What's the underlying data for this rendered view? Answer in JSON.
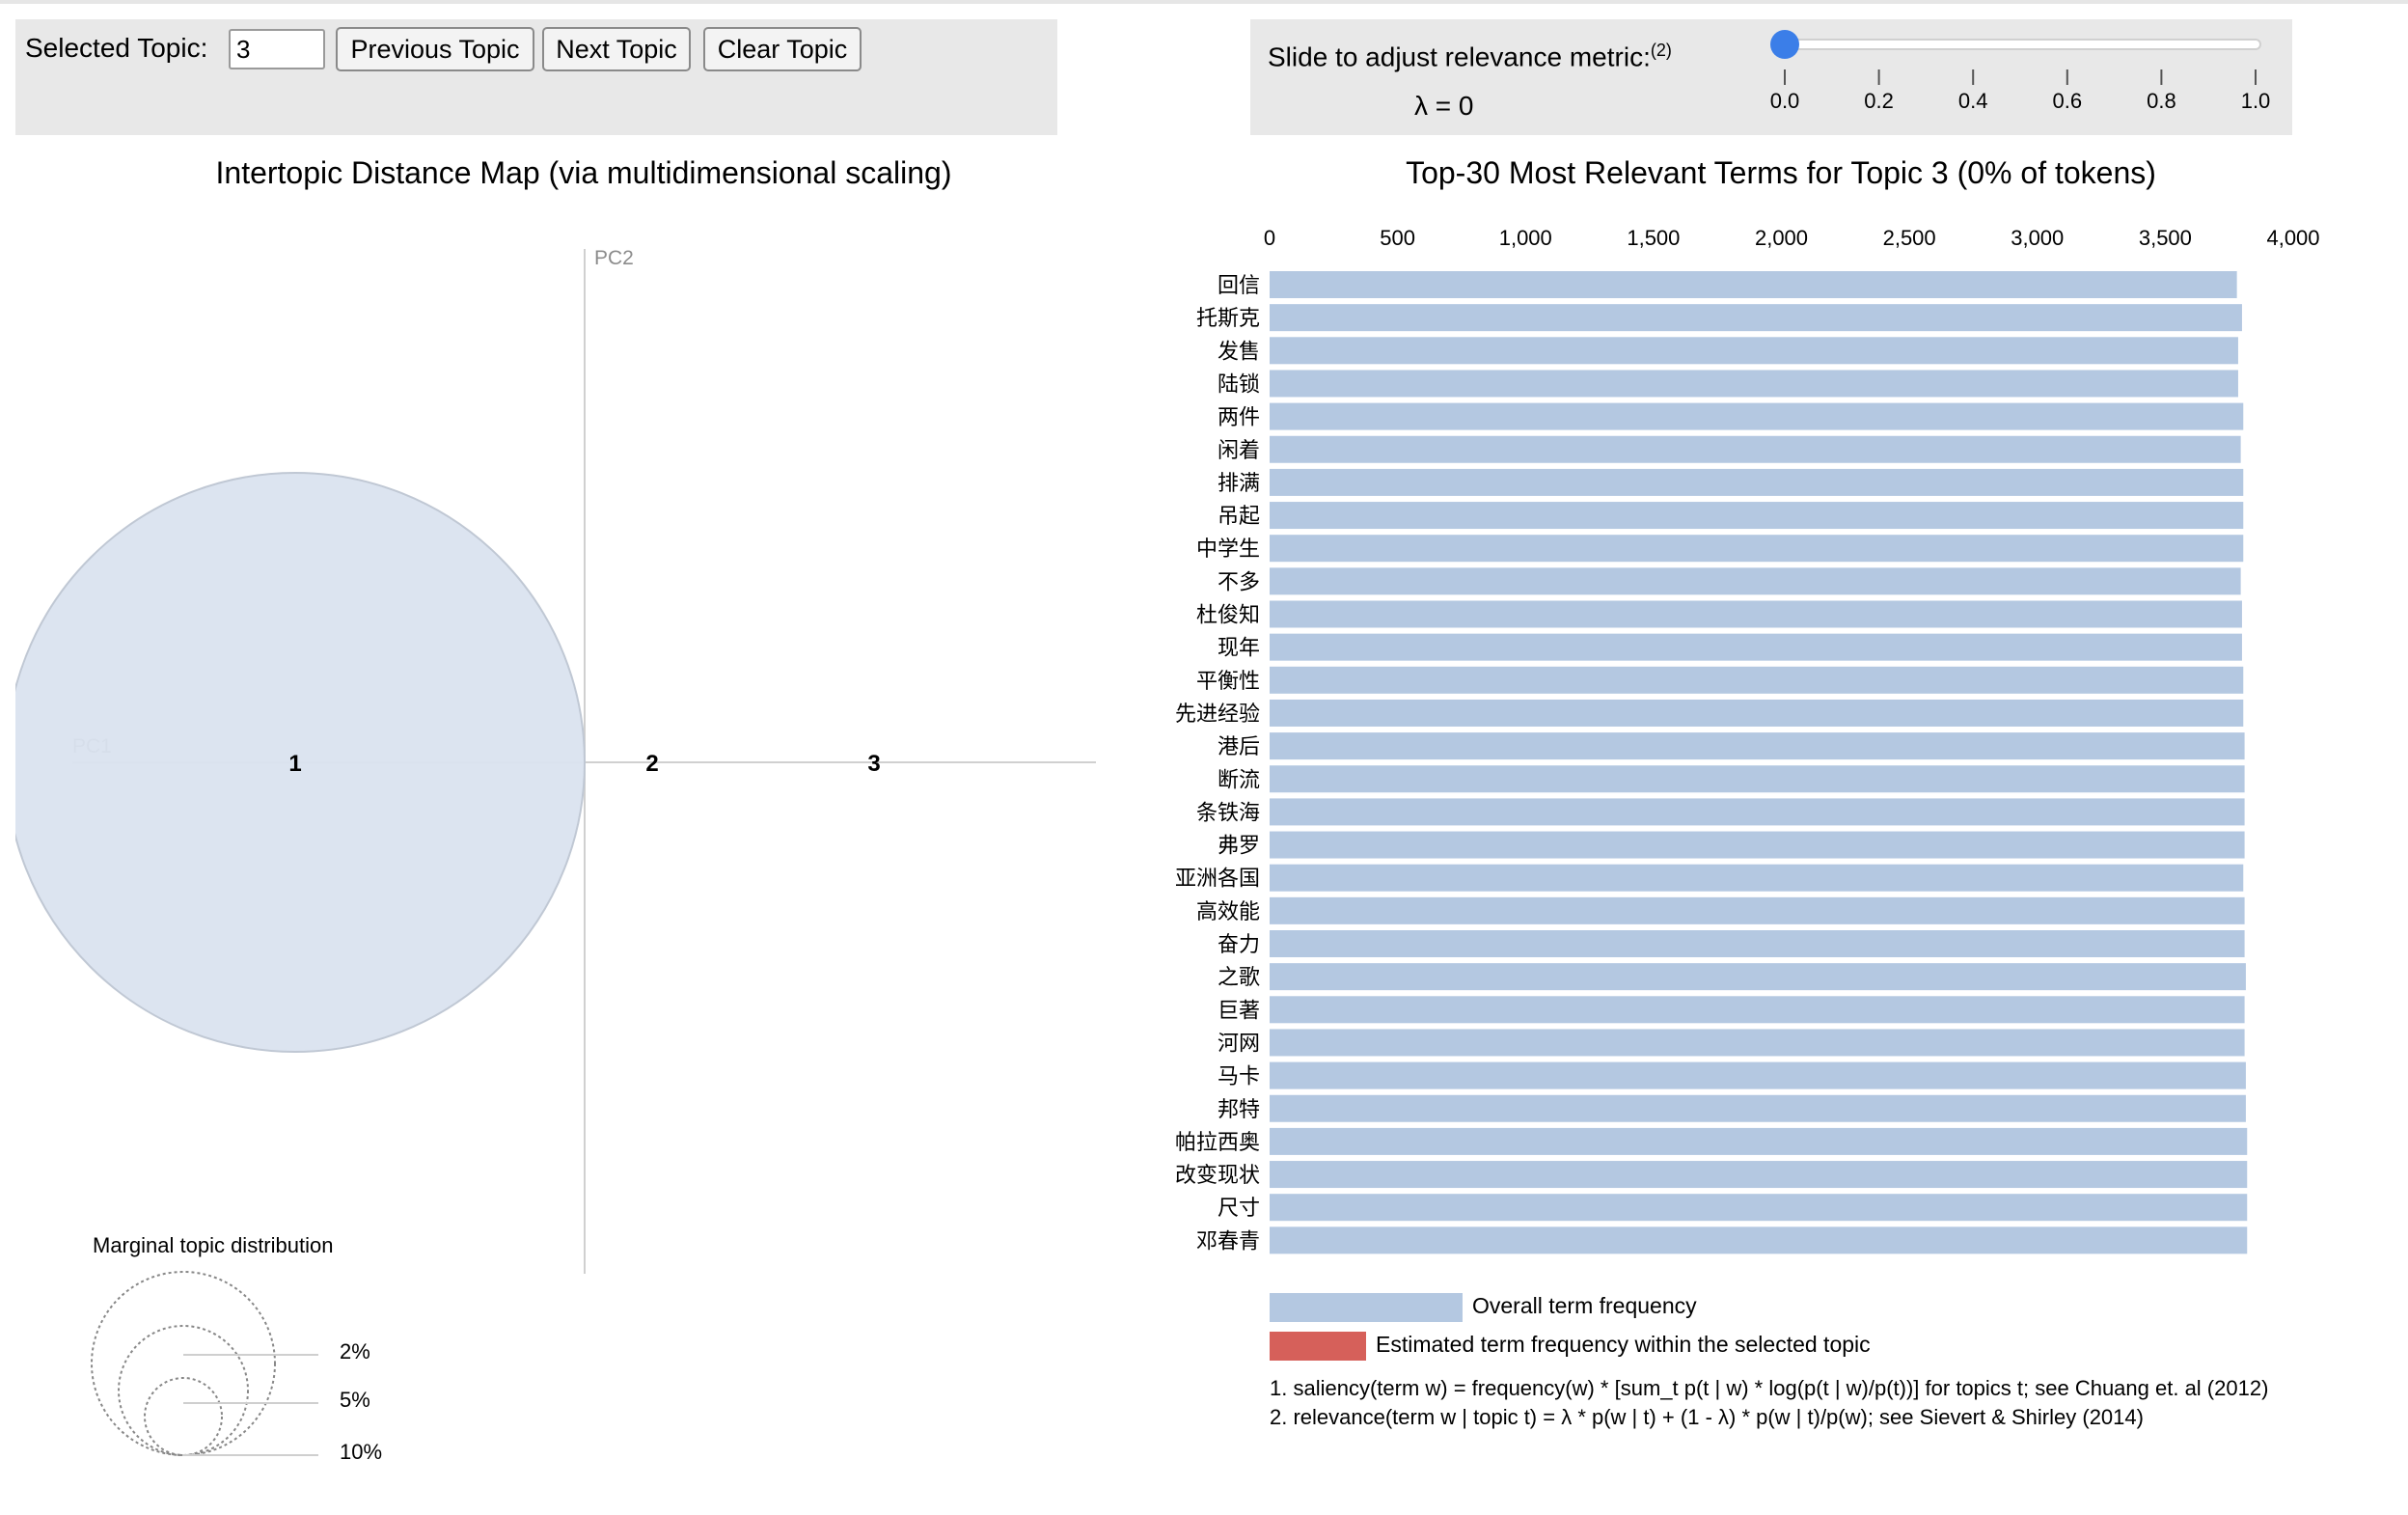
{
  "topic_control": {
    "label": "Selected Topic:",
    "value": "3",
    "prev_label": "Previous Topic",
    "next_label": "Next Topic",
    "clear_label": "Clear Topic"
  },
  "lambda_control": {
    "label": "Slide to adjust relevance metric:",
    "footnote_mark": "(2)",
    "value_text": "λ = 0",
    "value": 0,
    "ticks": [
      "0.0",
      "0.2",
      "0.4",
      "0.6",
      "0.8",
      "1.0"
    ],
    "handle_color": "#3b7ee8"
  },
  "mds_plot": {
    "title": "Intertopic Distance Map (via multidimensional scaling)",
    "pc1_label": "PC1",
    "pc2_label": "PC2",
    "topics": [
      {
        "id": "1",
        "x": -0.3,
        "y": 0.0,
        "size_pct": 100
      },
      {
        "id": "2",
        "x": 0.07,
        "y": 0.0,
        "size_pct": 0
      },
      {
        "id": "3",
        "x": 0.3,
        "y": 0.0,
        "size_pct": 0
      }
    ],
    "circle_color": "#dae3ef"
  },
  "marginal_legend": {
    "title": "Marginal topic distribution",
    "sizes": [
      "2%",
      "5%",
      "10%"
    ]
  },
  "legend": {
    "overall_label": "Overall term frequency",
    "estimated_label": "Estimated term frequency within the selected topic",
    "overall_color": "#b4c8e1",
    "estimated_color": "#d6605a"
  },
  "footnotes": [
    "1. saliency(term w) = frequency(w) * [sum_t p(t | w) * log(p(t | w)/p(t))] for topics t; see Chuang et. al (2012)",
    "2. relevance(term w | topic t) = λ * p(w | t) + (1 - λ) * p(w | t)/p(w); see Sievert & Shirley (2014)"
  ],
  "chart_data": {
    "type": "bar",
    "orientation": "horizontal",
    "title": "Top-30 Most Relevant Terms for Topic 3 (0% of tokens)",
    "xlim": [
      0,
      4000
    ],
    "x_ticks": [
      "0",
      "500",
      "1,000",
      "1,500",
      "2,000",
      "2,500",
      "3,000",
      "3,500",
      "4,000"
    ],
    "categories": [
      "回信",
      "托斯克",
      "发售",
      "陆锁",
      "两件",
      "闲着",
      "排满",
      "吊起",
      "中学生",
      "不多",
      "杜俊知",
      "现年",
      "平衡性",
      "先进经验",
      "港后",
      "断流",
      "条铁海",
      "弗罗",
      "亚洲各国",
      "高效能",
      "奋力",
      "之歌",
      "巨著",
      "河网",
      "马卡",
      "邦特",
      "帕拉西奥",
      "改变现状",
      "尺寸",
      "邓春青"
    ],
    "series": [
      {
        "name": "Overall term frequency",
        "values": [
          3780,
          3800,
          3785,
          3785,
          3805,
          3795,
          3805,
          3805,
          3805,
          3795,
          3800,
          3800,
          3805,
          3805,
          3810,
          3810,
          3810,
          3810,
          3805,
          3810,
          3810,
          3815,
          3810,
          3810,
          3815,
          3815,
          3820,
          3820,
          3820,
          3820
        ]
      },
      {
        "name": "Estimated term frequency within the selected topic",
        "values": [
          0,
          0,
          0,
          0,
          0,
          0,
          0,
          0,
          0,
          0,
          0,
          0,
          0,
          0,
          0,
          0,
          0,
          0,
          0,
          0,
          0,
          0,
          0,
          0,
          0,
          0,
          0,
          0,
          0,
          0
        ]
      }
    ],
    "legend": "bottom"
  }
}
